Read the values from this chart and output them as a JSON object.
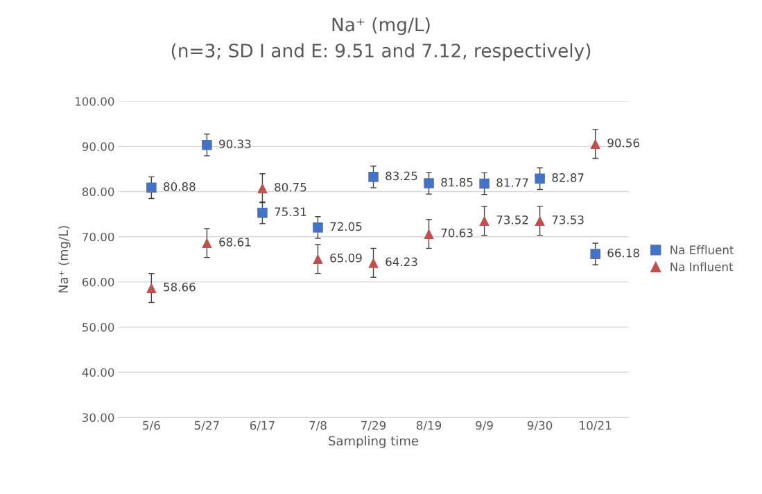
{
  "chart_data": {
    "type": "scatter",
    "title": "Na⁺ (mg/L)\n(n=3; SD I and E: 9.51 and 7.12, respectively)",
    "xlabel": "Sampling time",
    "ylabel": "Na⁺ (mg/L)",
    "categories": [
      "5/6",
      "5/27",
      "6/17",
      "7/8",
      "7/29",
      "8/19",
      "9/9",
      "9/30",
      "10/21"
    ],
    "series": [
      {
        "name": "Na Effluent",
        "color": "#4472c4",
        "marker": "square",
        "values": [
          80.88,
          90.33,
          75.31,
          72.05,
          83.25,
          81.85,
          81.77,
          82.87,
          66.18
        ],
        "errors": [
          2.4,
          2.4,
          2.4,
          2.4,
          2.4,
          2.4,
          2.4,
          2.4,
          2.4
        ]
      },
      {
        "name": "Na Influent",
        "color": "#c0504d",
        "marker": "triangle",
        "values": [
          58.66,
          68.61,
          80.75,
          65.09,
          64.23,
          70.63,
          73.52,
          73.53,
          90.56
        ],
        "errors": [
          3.2,
          3.2,
          3.2,
          3.2,
          3.2,
          3.2,
          3.2,
          3.2,
          3.2
        ]
      }
    ],
    "ylim": [
      30,
      100
    ],
    "yticks": [
      {
        "value": 30,
        "label": "30.00"
      },
      {
        "value": 40,
        "label": "40.00"
      },
      {
        "value": 50,
        "label": "50.00"
      },
      {
        "value": 60,
        "label": "60.00"
      },
      {
        "value": 70,
        "label": "70.00"
      },
      {
        "value": 80,
        "label": "80.00"
      },
      {
        "value": 90,
        "label": "90.00"
      },
      {
        "value": 100,
        "label": "100.00"
      }
    ],
    "grid": "y",
    "legend": "right",
    "data_labels": true
  }
}
